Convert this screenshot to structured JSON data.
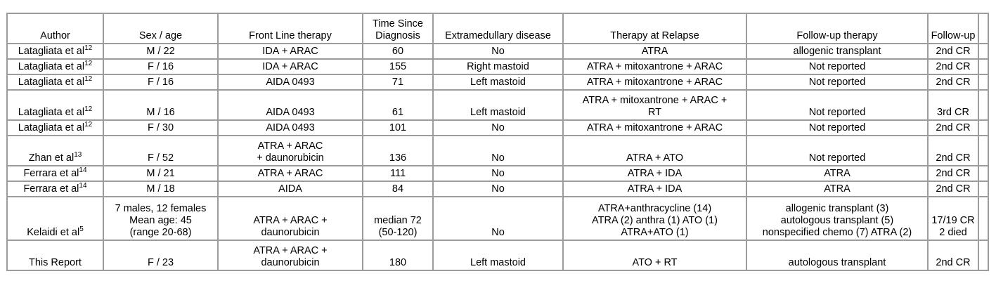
{
  "table": {
    "headers": [
      {
        "lines": [
          "Author"
        ]
      },
      {
        "lines": [
          "Sex / age"
        ]
      },
      {
        "lines": [
          "Front Line therapy"
        ]
      },
      {
        "lines": [
          "Time Since",
          "Diagnosis"
        ]
      },
      {
        "lines": [
          "Extramedullary disease"
        ]
      },
      {
        "lines": [
          "Therapy at Relapse"
        ]
      },
      {
        "lines": [
          "Follow-up therapy"
        ]
      },
      {
        "lines": [
          "Follow-up"
        ]
      }
    ],
    "rows": [
      {
        "h": "h1",
        "author": "Latagliata et al",
        "ref": "12",
        "sex_age": [
          "M / 22"
        ],
        "front_line": [
          "IDA + ARAC"
        ],
        "time": [
          "60"
        ],
        "extramedullary": [
          "No"
        ],
        "relapse_therapy": [
          "ATRA"
        ],
        "followup_therapy": [
          "allogenic transplant"
        ],
        "followup": [
          "2nd CR"
        ]
      },
      {
        "h": "h1",
        "author": "Latagliata et al",
        "ref": "12",
        "sex_age": [
          "F / 16"
        ],
        "front_line": [
          "IDA + ARAC"
        ],
        "time": [
          "155"
        ],
        "extramedullary": [
          "Right mastoid"
        ],
        "relapse_therapy": [
          "ATRA + mitoxantrone + ARAC"
        ],
        "followup_therapy": [
          "Not reported"
        ],
        "followup": [
          "2nd CR"
        ]
      },
      {
        "h": "h1",
        "author": "Latagliata et al",
        "ref": "12",
        "sex_age": [
          "F / 16"
        ],
        "front_line": [
          "AIDA 0493"
        ],
        "time": [
          "71"
        ],
        "extramedullary": [
          "Left mastoid"
        ],
        "relapse_therapy": [
          "ATRA + mitoxantrone + ARAC"
        ],
        "followup_therapy": [
          "Not reported"
        ],
        "followup": [
          "2nd CR"
        ]
      },
      {
        "h": "h2",
        "author": "Latagliata et al",
        "ref": "12",
        "sex_age": [
          "M / 16"
        ],
        "front_line": [
          "AIDA 0493"
        ],
        "time": [
          "61"
        ],
        "extramedullary": [
          "Left mastoid"
        ],
        "relapse_therapy": [
          "ATRA + mitoxantrone + ARAC +",
          "RT"
        ],
        "followup_therapy": [
          "Not reported"
        ],
        "followup": [
          "3rd CR"
        ]
      },
      {
        "h": "h1",
        "author": "Latagliata et al",
        "ref": "12",
        "sex_age": [
          "F / 30"
        ],
        "front_line": [
          "AIDA 0493"
        ],
        "time": [
          "101"
        ],
        "extramedullary": [
          "No"
        ],
        "relapse_therapy": [
          "ATRA + mitoxantrone + ARAC"
        ],
        "followup_therapy": [
          "Not reported"
        ],
        "followup": [
          "2nd CR"
        ]
      },
      {
        "h": "h2",
        "author": "Zhan et al",
        "ref": "13",
        "sex_age": [
          "F / 52"
        ],
        "front_line": [
          "ATRA + ARAC",
          "+ daunorubicin"
        ],
        "time": [
          "136"
        ],
        "extramedullary": [
          "No"
        ],
        "relapse_therapy": [
          "ATRA + ATO"
        ],
        "followup_therapy": [
          "Not reported"
        ],
        "followup": [
          "2nd CR"
        ]
      },
      {
        "h": "h1",
        "author": "Ferrara et al",
        "ref": "14",
        "sex_age": [
          "M / 21"
        ],
        "front_line": [
          "ATRA + ARAC"
        ],
        "time": [
          "111"
        ],
        "extramedullary": [
          "No"
        ],
        "relapse_therapy": [
          "ATRA + IDA"
        ],
        "followup_therapy": [
          "ATRA"
        ],
        "followup": [
          "2nd CR"
        ]
      },
      {
        "h": "h1",
        "author": "Ferrara et al",
        "ref": "14",
        "sex_age": [
          "M / 18"
        ],
        "front_line": [
          "AIDA"
        ],
        "time": [
          "84"
        ],
        "extramedullary": [
          "No"
        ],
        "relapse_therapy": [
          "ATRA + IDA"
        ],
        "followup_therapy": [
          "ATRA"
        ],
        "followup": [
          "2nd CR"
        ]
      },
      {
        "h": "h3",
        "author": "Kelaidi et al",
        "ref": "5",
        "sex_age": [
          "7 males, 12 females",
          "Mean age: 45",
          "(range 20-68)"
        ],
        "front_line": [
          "ATRA + ARAC +",
          "daunorubicin"
        ],
        "time": [
          "median 72",
          "(50-120)"
        ],
        "extramedullary": [
          "No"
        ],
        "relapse_therapy": [
          "ATRA+anthracycline (14)",
          "ATRA (2) anthra (1) ATO (1)",
          "ATRA+ATO (1)"
        ],
        "followup_therapy": [
          "allogenic transplant (3)",
          "autologous transplant (5)",
          "nonspecified chemo (7) ATRA (2)"
        ],
        "followup": [
          "17/19 CR",
          "2 died"
        ]
      },
      {
        "h": "h4",
        "author": "This Report",
        "ref": "",
        "sex_age": [
          "F / 23"
        ],
        "front_line": [
          "ATRA + ARAC +",
          "daunorubicin"
        ],
        "time": [
          "180"
        ],
        "extramedullary": [
          "Left mastoid"
        ],
        "relapse_therapy": [
          "ATO + RT"
        ],
        "followup_therapy": [
          "autologous transplant"
        ],
        "followup": [
          "2nd CR"
        ]
      }
    ]
  }
}
